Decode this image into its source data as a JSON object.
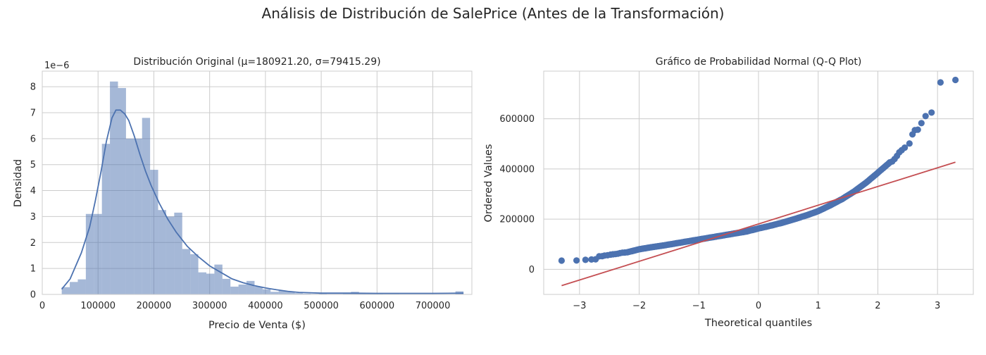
{
  "figure": {
    "suptitle": "Análisis de Distribución de SalePrice (Antes de la Transformación)"
  },
  "chart_data": [
    {
      "type": "bar",
      "subtype": "histogram+kde",
      "title": "Distribución Original (μ=180921.20, σ=79415.29)",
      "xlabel": "Precio de Venta ($)",
      "ylabel": "Densidad",
      "y_scale_note": "1e−6",
      "xlim": [
        0,
        770000
      ],
      "ylim": [
        0,
        8.6
      ],
      "xticks": [
        0,
        100000,
        200000,
        300000,
        400000,
        500000,
        600000,
        700000
      ],
      "yticks": [
        0,
        1,
        2,
        3,
        4,
        5,
        6,
        7,
        8
      ],
      "grid": true,
      "colors": {
        "bars": "#4c72b0",
        "kde": "#4c72b0"
      },
      "bins": [
        {
          "x0": 34900,
          "x1": 49300,
          "density": 0.28
        },
        {
          "x0": 49300,
          "x1": 63700,
          "density": 0.48
        },
        {
          "x0": 63700,
          "x1": 78100,
          "density": 0.58
        },
        {
          "x0": 78100,
          "x1": 92500,
          "density": 3.1
        },
        {
          "x0": 92500,
          "x1": 106900,
          "density": 3.1
        },
        {
          "x0": 106900,
          "x1": 121300,
          "density": 5.8
        },
        {
          "x0": 121300,
          "x1": 135700,
          "density": 8.2
        },
        {
          "x0": 135700,
          "x1": 150100,
          "density": 7.95
        },
        {
          "x0": 150100,
          "x1": 164500,
          "density": 6.0
        },
        {
          "x0": 164500,
          "x1": 178900,
          "density": 6.0
        },
        {
          "x0": 178900,
          "x1": 193300,
          "density": 6.8
        },
        {
          "x0": 193300,
          "x1": 207700,
          "density": 4.8
        },
        {
          "x0": 207700,
          "x1": 222100,
          "density": 3.25
        },
        {
          "x0": 222100,
          "x1": 236500,
          "density": 3.0
        },
        {
          "x0": 236500,
          "x1": 250900,
          "density": 3.15
        },
        {
          "x0": 250900,
          "x1": 265300,
          "density": 1.75
        },
        {
          "x0": 265300,
          "x1": 279700,
          "density": 1.55
        },
        {
          "x0": 279700,
          "x1": 294100,
          "density": 0.85
        },
        {
          "x0": 294100,
          "x1": 308500,
          "density": 0.8
        },
        {
          "x0": 308500,
          "x1": 322900,
          "density": 1.15
        },
        {
          "x0": 322900,
          "x1": 337300,
          "density": 0.6
        },
        {
          "x0": 337300,
          "x1": 351700,
          "density": 0.3
        },
        {
          "x0": 351700,
          "x1": 366100,
          "density": 0.38
        },
        {
          "x0": 366100,
          "x1": 380500,
          "density": 0.52
        },
        {
          "x0": 380500,
          "x1": 394900,
          "density": 0.3
        },
        {
          "x0": 394900,
          "x1": 409300,
          "density": 0.2
        },
        {
          "x0": 409300,
          "x1": 423700,
          "density": 0.1
        },
        {
          "x0": 423700,
          "x1": 438100,
          "density": 0.14
        },
        {
          "x0": 438100,
          "x1": 452500,
          "density": 0.1
        },
        {
          "x0": 452500,
          "x1": 466900,
          "density": 0.05
        },
        {
          "x0": 466900,
          "x1": 481300,
          "density": 0.03
        },
        {
          "x0": 481300,
          "x1": 495700,
          "density": 0.02
        },
        {
          "x0": 495700,
          "x1": 510100,
          "density": 0.03
        },
        {
          "x0": 510100,
          "x1": 524500,
          "density": 0.02
        },
        {
          "x0": 524500,
          "x1": 538900,
          "density": 0.02
        },
        {
          "x0": 538900,
          "x1": 553300,
          "density": 0.05
        },
        {
          "x0": 553300,
          "x1": 567700,
          "density": 0.1
        },
        {
          "x0": 567700,
          "x1": 582100,
          "density": 0.03
        },
        {
          "x0": 582100,
          "x1": 596500,
          "density": 0.03
        },
        {
          "x0": 596500,
          "x1": 610900,
          "density": 0.03
        },
        {
          "x0": 610900,
          "x1": 625300,
          "density": 0.02
        },
        {
          "x0": 625300,
          "x1": 639700,
          "density": 0.02
        },
        {
          "x0": 639700,
          "x1": 654100,
          "density": 0.0
        },
        {
          "x0": 654100,
          "x1": 668500,
          "density": 0.0
        },
        {
          "x0": 668500,
          "x1": 682900,
          "density": 0.0
        },
        {
          "x0": 682900,
          "x1": 697300,
          "density": 0.0
        },
        {
          "x0": 697300,
          "x1": 711700,
          "density": 0.0
        },
        {
          "x0": 711700,
          "x1": 726100,
          "density": 0.0
        },
        {
          "x0": 726100,
          "x1": 740500,
          "density": 0.0
        },
        {
          "x0": 740500,
          "x1": 755000,
          "density": 0.12
        }
      ],
      "kde": {
        "x": [
          34900,
          50000,
          70000,
          85000,
          95000,
          105000,
          115000,
          125000,
          132000,
          140000,
          148000,
          155000,
          165000,
          175000,
          185000,
          195000,
          210000,
          225000,
          240000,
          260000,
          280000,
          300000,
          320000,
          340000,
          360000,
          380000,
          400000,
          420000,
          440000,
          460000,
          500000,
          550000,
          600000,
          650000,
          700000,
          755000
        ],
        "y": [
          0.2,
          0.6,
          1.6,
          2.6,
          3.6,
          4.7,
          5.9,
          6.8,
          7.1,
          7.1,
          6.95,
          6.7,
          6.1,
          5.4,
          4.75,
          4.2,
          3.5,
          2.9,
          2.4,
          1.85,
          1.45,
          1.1,
          0.85,
          0.6,
          0.45,
          0.34,
          0.25,
          0.18,
          0.12,
          0.08,
          0.05,
          0.05,
          0.04,
          0.04,
          0.04,
          0.05
        ]
      }
    },
    {
      "type": "scatter",
      "subtype": "qq-plot",
      "title": "Gráfico de Probabilidad Normal (Q-Q Plot)",
      "xlabel": "Theoretical quantiles",
      "ylabel": "Ordered Values",
      "xlim": [
        -3.6,
        3.6
      ],
      "ylim": [
        -100000,
        790000
      ],
      "xticks": [
        -3,
        -2,
        -1,
        0,
        1,
        2,
        3
      ],
      "xtick_labels": [
        "−3",
        "−2",
        "−1",
        "0",
        "1",
        "2",
        "3"
      ],
      "yticks": [
        0,
        200000,
        400000,
        600000
      ],
      "grid": true,
      "colors": {
        "points": "#4c72b0",
        "fit_line": "#c44e52"
      },
      "fit_line": {
        "x": [
          -3.3,
          3.3
        ],
        "y": [
          -65000,
          427000
        ]
      },
      "points_top": [
        {
          "x": 3.3,
          "y": 755000
        },
        {
          "x": 3.05,
          "y": 745000
        },
        {
          "x": 2.9,
          "y": 625000
        },
        {
          "x": 2.8,
          "y": 611000
        },
        {
          "x": 2.73,
          "y": 582900
        },
        {
          "x": 2.67,
          "y": 556600
        },
        {
          "x": 2.62,
          "y": 555000
        },
        {
          "x": 2.58,
          "y": 538000
        },
        {
          "x": 2.53,
          "y": 501800
        },
        {
          "x": 2.45,
          "y": 485000
        },
        {
          "x": 2.4,
          "y": 475000
        },
        {
          "x": 2.36,
          "y": 466500
        },
        {
          "x": 2.32,
          "y": 451950
        },
        {
          "x": 2.28,
          "y": 440000
        },
        {
          "x": 2.24,
          "y": 430000
        },
        {
          "x": 2.2,
          "y": 426000
        }
      ],
      "points_bottom": [
        {
          "x": -3.3,
          "y": 34900
        },
        {
          "x": -3.05,
          "y": 35311
        },
        {
          "x": -2.9,
          "y": 37900
        },
        {
          "x": -2.8,
          "y": 39300
        },
        {
          "x": -2.73,
          "y": 40000
        },
        {
          "x": -2.67,
          "y": 52000
        },
        {
          "x": -2.62,
          "y": 52500
        },
        {
          "x": -2.58,
          "y": 55000
        },
        {
          "x": -2.53,
          "y": 55993
        },
        {
          "x": -2.48,
          "y": 58500
        },
        {
          "x": -2.44,
          "y": 60000
        },
        {
          "x": -2.4,
          "y": 61000
        },
        {
          "x": -2.36,
          "y": 62383
        },
        {
          "x": -2.32,
          "y": 64500
        },
        {
          "x": -2.28,
          "y": 66500
        },
        {
          "x": -2.24,
          "y": 67000
        }
      ],
      "body_curve": {
        "x": [
          -2.2,
          -2.0,
          -1.8,
          -1.6,
          -1.4,
          -1.2,
          -1.0,
          -0.8,
          -0.6,
          -0.4,
          -0.2,
          0.0,
          0.2,
          0.4,
          0.6,
          0.8,
          1.0,
          1.2,
          1.4,
          1.6,
          1.8,
          2.0,
          2.2
        ],
        "y": [
          68000,
          80000,
          88000,
          95000,
          103000,
          111000,
          119000,
          127000,
          135000,
          143000,
          151000,
          163000,
          174000,
          186000,
          200000,
          215000,
          232000,
          255000,
          280000,
          310000,
          345000,
          385000,
          426000
        ]
      }
    }
  ]
}
